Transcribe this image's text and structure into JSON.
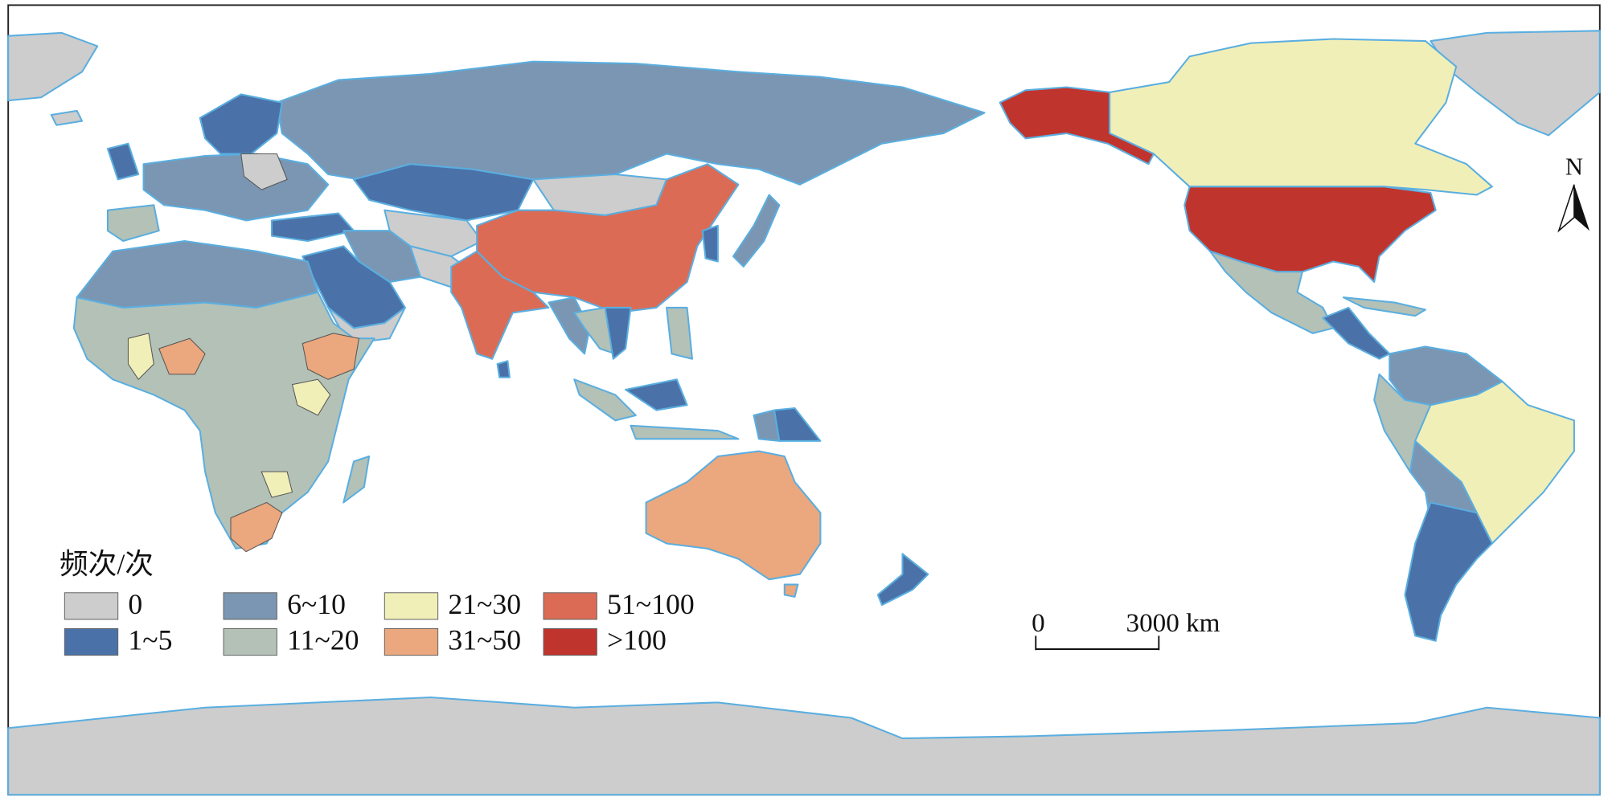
{
  "legend": {
    "title": "频次/次",
    "items": [
      {
        "label": "0",
        "color": "#cdcdcd"
      },
      {
        "label": "1~5",
        "color": "#4a72a8"
      },
      {
        "label": "6~10",
        "color": "#7b96b2"
      },
      {
        "label": "11~20",
        "color": "#b3c1b7"
      },
      {
        "label": "21~30",
        "color": "#f1efb8"
      },
      {
        "label": "31~50",
        "color": "#eba77d"
      },
      {
        "label": "51~100",
        "color": "#dc6b56"
      },
      {
        "label": ">100",
        "color": "#c0342e"
      }
    ]
  },
  "scale_bar": {
    "start": "0",
    "end": "3000 km"
  },
  "north_arrow": "N"
}
